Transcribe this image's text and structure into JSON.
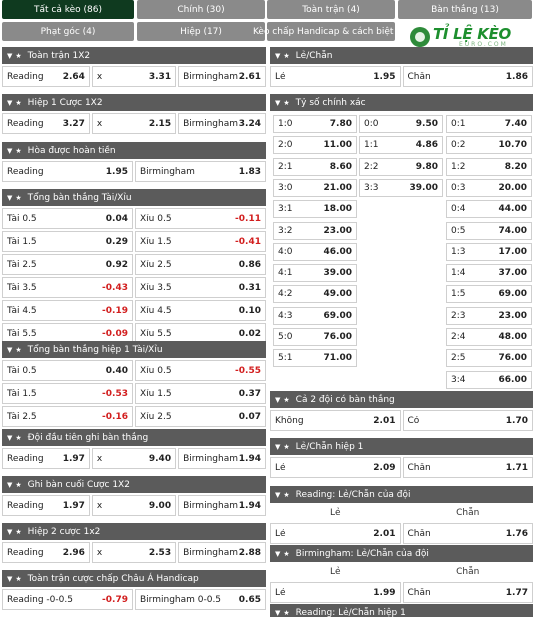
{
  "tabs_row1": [
    {
      "label": "Tất cả kèo (86)",
      "active": true
    },
    {
      "label": "Chính (30)",
      "active": false
    },
    {
      "label": "Toàn trận (4)",
      "active": false
    },
    {
      "label": "Bàn thắng (13)",
      "active": false
    }
  ],
  "tabs_row2": [
    {
      "label": "Phạt góc (4)"
    },
    {
      "label": "Hiệp (17)"
    },
    {
      "label": "Kèo chấp Handicap & cách biệt (3)"
    }
  ],
  "logo": {
    "main": "TỈ LỆ KÈO",
    "sub": "EURO.COM"
  },
  "left": [
    {
      "title": "Toàn trận 1X2",
      "rows": [
        [
          [
            "Reading",
            "2.64"
          ],
          [
            "x",
            "3.31"
          ],
          [
            "Birmingham",
            "2.61"
          ]
        ]
      ]
    },
    {
      "title": "Hiệp 1 Cược 1X2",
      "rows": [
        [
          [
            "Reading",
            "3.27"
          ],
          [
            "x",
            "2.15"
          ],
          [
            "Birmingham",
            "3.24"
          ]
        ]
      ]
    },
    {
      "title": "Hòa được hoàn tiền",
      "rows": [
        [
          [
            "Reading",
            "1.95"
          ],
          [
            "Birmingham",
            "1.83"
          ]
        ]
      ]
    },
    {
      "title": "Tổng bàn thắng Tài/Xỉu",
      "rows": [
        [
          [
            "Tài 0.5",
            "0.04"
          ],
          [
            "Xỉu 0.5",
            "-0.11"
          ]
        ],
        [
          [
            "Tài 1.5",
            "0.29"
          ],
          [
            "Xỉu 1.5",
            "-0.41"
          ]
        ],
        [
          [
            "Tài 2.5",
            "0.92"
          ],
          [
            "Xỉu 2.5",
            "0.86"
          ]
        ],
        [
          [
            "Tài 3.5",
            "-0.43"
          ],
          [
            "Xỉu 3.5",
            "0.31"
          ]
        ],
        [
          [
            "Tài 4.5",
            "-0.19"
          ],
          [
            "Xỉu 4.5",
            "0.10"
          ]
        ],
        [
          [
            "Tài 5.5",
            "-0.09"
          ],
          [
            "Xỉu 5.5",
            "0.02"
          ]
        ]
      ]
    },
    {
      "title": "Tổng bàn thắng hiệp 1 Tài/Xỉu",
      "rows": [
        [
          [
            "Tài 0.5",
            "0.40"
          ],
          [
            "Xỉu 0.5",
            "-0.55"
          ]
        ],
        [
          [
            "Tài 1.5",
            "-0.53"
          ],
          [
            "Xỉu 1.5",
            "0.37"
          ]
        ],
        [
          [
            "Tài 2.5",
            "-0.16"
          ],
          [
            "Xỉu 2.5",
            "0.07"
          ]
        ]
      ]
    },
    {
      "title": "Đội đầu tiên ghi bàn thắng",
      "rows": [
        [
          [
            "Reading",
            "1.97"
          ],
          [
            "x",
            "9.40"
          ],
          [
            "Birmingham",
            "1.94"
          ]
        ]
      ]
    },
    {
      "title": "Ghi bàn cuối Cược 1X2",
      "rows": [
        [
          [
            "Reading",
            "1.97"
          ],
          [
            "x",
            "9.00"
          ],
          [
            "Birmingham",
            "1.94"
          ]
        ]
      ]
    },
    {
      "title": "Hiệp 2 cược 1x2",
      "rows": [
        [
          [
            "Reading",
            "2.96"
          ],
          [
            "x",
            "2.53"
          ],
          [
            "Birmingham",
            "2.88"
          ]
        ]
      ]
    },
    {
      "title": "Toàn trận cược chấp Châu Á Handicap",
      "rows": [
        [
          [
            "Reading -0-0.5",
            "-0.79"
          ],
          [
            "Birmingham 0-0.5",
            "0.65"
          ]
        ]
      ]
    }
  ],
  "right_odd_even": {
    "title": "Lẻ/Chẵn",
    "rows": [
      [
        [
          "Lẻ",
          "1.95"
        ],
        [
          "Chẵn",
          "1.86"
        ]
      ]
    ]
  },
  "correct_score": {
    "title": "Tỷ số chính xác",
    "col1": [
      [
        "1:0",
        "7.80"
      ],
      [
        "2:0",
        "11.00"
      ],
      [
        "2:1",
        "8.60"
      ],
      [
        "3:0",
        "21.00"
      ],
      [
        "3:1",
        "18.00"
      ],
      [
        "3:2",
        "23.00"
      ],
      [
        "4:0",
        "46.00"
      ],
      [
        "4:1",
        "39.00"
      ],
      [
        "4:2",
        "49.00"
      ],
      [
        "4:3",
        "69.00"
      ],
      [
        "5:0",
        "76.00"
      ],
      [
        "5:1",
        "71.00"
      ]
    ],
    "col2": [
      [
        "0:0",
        "9.50"
      ],
      [
        "1:1",
        "4.86"
      ],
      [
        "2:2",
        "9.80"
      ],
      [
        "3:3",
        "39.00"
      ]
    ],
    "col3": [
      [
        "0:1",
        "7.40"
      ],
      [
        "0:2",
        "10.70"
      ],
      [
        "1:2",
        "8.20"
      ],
      [
        "0:3",
        "20.00"
      ],
      [
        "0:4",
        "44.00"
      ],
      [
        "0:5",
        "74.00"
      ],
      [
        "1:3",
        "17.00"
      ],
      [
        "1:4",
        "37.00"
      ],
      [
        "1:5",
        "69.00"
      ],
      [
        "2:3",
        "23.00"
      ],
      [
        "2:4",
        "48.00"
      ],
      [
        "2:5",
        "76.00"
      ],
      [
        "3:4",
        "66.00"
      ]
    ]
  },
  "right_panels": [
    {
      "title": "Cả 2 đội có bàn thắng",
      "rows": [
        [
          [
            "Không",
            "2.01"
          ],
          [
            "Có",
            "1.70"
          ]
        ]
      ]
    },
    {
      "title": "Lẻ/Chẵn hiệp 1",
      "rows": [
        [
          [
            "Lẻ",
            "2.09"
          ],
          [
            "Chẵn",
            "1.71"
          ]
        ]
      ]
    },
    {
      "title": "Reading: Lẻ/Chẵn của đội",
      "sub": [
        "Lẻ",
        "Chẵn"
      ],
      "rows": [
        [
          [
            "Lẻ",
            "2.01"
          ],
          [
            "Chẵn",
            "1.76"
          ]
        ]
      ]
    },
    {
      "title": "Birmingham: Lẻ/Chẵn của đội",
      "sub": [
        "Lẻ",
        "Chẵn"
      ],
      "rows": [
        [
          [
            "Lẻ",
            "1.99"
          ],
          [
            "Chẵn",
            "1.77"
          ]
        ]
      ]
    },
    {
      "title": "Reading: Lẻ/Chẵn hiệp 1",
      "rows": []
    }
  ],
  "colors": {
    "header": "#5b5b5b",
    "tab_active": "#0f3a1f",
    "tab": "#8a8a8a",
    "negative": "#d21e1e",
    "logo_green": "#1d8f2e"
  }
}
